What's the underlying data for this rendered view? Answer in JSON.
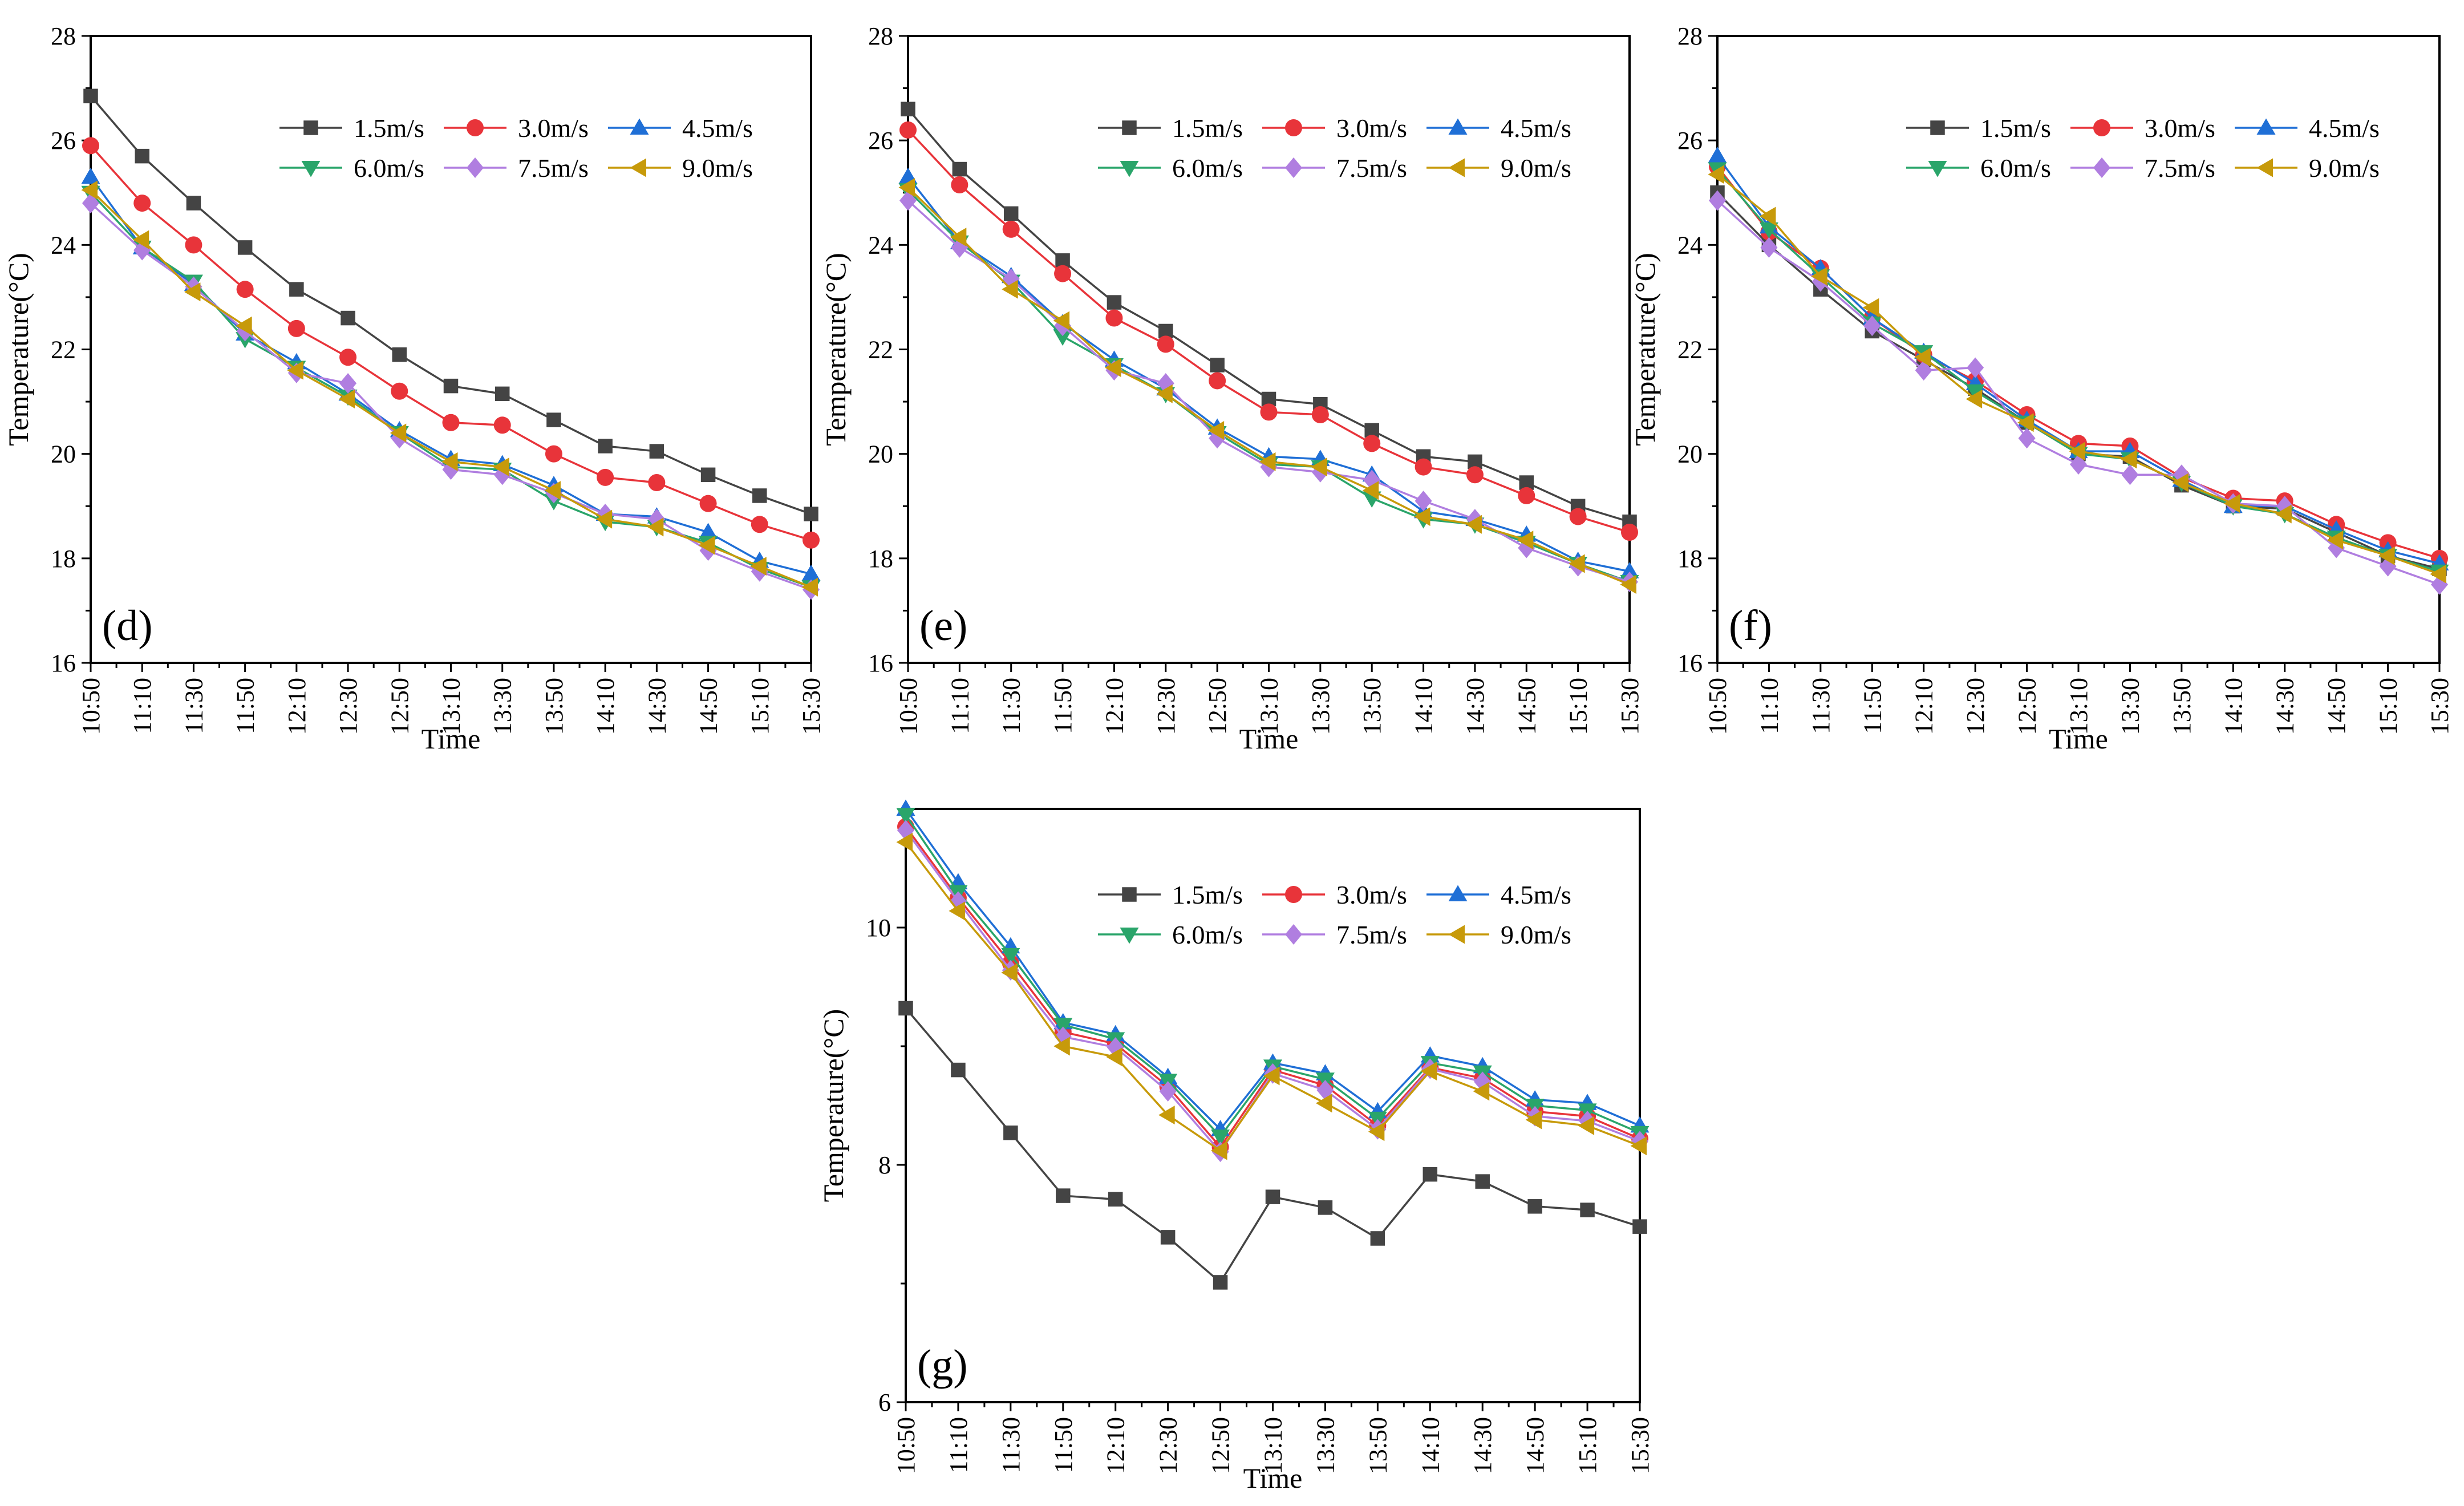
{
  "chart_data": [
    {
      "type": "line",
      "panel_label": "(d)",
      "xlabel": "Time",
      "ylabel": "Temperature(°C)",
      "ylim": [
        16,
        28
      ],
      "yticks": [
        16,
        18,
        20,
        22,
        24,
        26,
        28
      ],
      "categories": [
        "10:50",
        "11:10",
        "11:30",
        "11:50",
        "12:10",
        "12:30",
        "12:50",
        "13:10",
        "13:30",
        "13:50",
        "14:10",
        "14:30",
        "14:50",
        "15:10",
        "15:30"
      ],
      "legend_position": "top-right",
      "series": [
        {
          "name": "1.5m/s",
          "color": "#444444",
          "marker": "square",
          "values": [
            26.85,
            25.7,
            24.8,
            23.95,
            23.15,
            22.6,
            21.9,
            21.3,
            21.15,
            20.65,
            20.15,
            20.05,
            19.6,
            19.2,
            18.85
          ]
        },
        {
          "name": "3.0m/s",
          "color": "#e8343a",
          "marker": "circle",
          "values": [
            25.9,
            24.8,
            24.0,
            23.15,
            22.4,
            21.85,
            21.2,
            20.6,
            20.55,
            20.0,
            19.55,
            19.45,
            19.05,
            18.65,
            18.35
          ]
        },
        {
          "name": "4.5m/s",
          "color": "#1f6fd6",
          "marker": "triangle-up",
          "values": [
            25.3,
            23.95,
            23.25,
            22.3,
            21.75,
            21.15,
            20.45,
            19.9,
            19.8,
            19.4,
            18.85,
            18.8,
            18.5,
            17.95,
            17.7
          ]
        },
        {
          "name": "6.0m/s",
          "color": "#2aa56a",
          "marker": "triangle-down",
          "values": [
            25.0,
            23.95,
            23.3,
            22.2,
            21.65,
            21.1,
            20.4,
            19.75,
            19.7,
            19.1,
            18.7,
            18.6,
            18.3,
            17.8,
            17.45
          ]
        },
        {
          "name": "7.5m/s",
          "color": "#b07ee0",
          "marker": "diamond",
          "values": [
            24.8,
            23.9,
            23.2,
            22.35,
            21.55,
            21.35,
            20.3,
            19.7,
            19.6,
            19.25,
            18.85,
            18.75,
            18.15,
            17.75,
            17.4
          ]
        },
        {
          "name": "9.0m/s",
          "color": "#c79a0a",
          "marker": "triangle-left",
          "values": [
            25.05,
            24.1,
            23.1,
            22.45,
            21.6,
            21.05,
            20.4,
            19.85,
            19.75,
            19.3,
            18.75,
            18.6,
            18.25,
            17.85,
            17.45
          ]
        }
      ]
    },
    {
      "type": "line",
      "panel_label": "(e)",
      "xlabel": "Time",
      "ylabel": "Temperature(°C)",
      "ylim": [
        16,
        28
      ],
      "yticks": [
        16,
        18,
        20,
        22,
        24,
        26,
        28
      ],
      "categories": [
        "10:50",
        "11:10",
        "11:30",
        "11:50",
        "12:10",
        "12:30",
        "12:50",
        "13:10",
        "13:30",
        "13:50",
        "14:10",
        "14:30",
        "14:50",
        "15:10",
        "15:30"
      ],
      "legend_position": "top-right",
      "series": [
        {
          "name": "1.5m/s",
          "color": "#444444",
          "marker": "square",
          "values": [
            26.6,
            25.45,
            24.6,
            23.7,
            22.9,
            22.35,
            21.7,
            21.05,
            20.95,
            20.45,
            19.95,
            19.85,
            19.45,
            19.0,
            18.7
          ]
        },
        {
          "name": "3.0m/s",
          "color": "#e8343a",
          "marker": "circle",
          "values": [
            26.2,
            25.15,
            24.3,
            23.45,
            22.6,
            22.1,
            21.4,
            20.8,
            20.75,
            20.2,
            19.75,
            19.6,
            19.2,
            18.8,
            18.5
          ]
        },
        {
          "name": "4.5m/s",
          "color": "#1f6fd6",
          "marker": "triangle-up",
          "values": [
            25.3,
            24.05,
            23.4,
            22.5,
            21.8,
            21.25,
            20.5,
            19.95,
            19.9,
            19.6,
            18.9,
            18.75,
            18.45,
            17.95,
            17.75
          ]
        },
        {
          "name": "6.0m/s",
          "color": "#2aa56a",
          "marker": "triangle-down",
          "values": [
            25.05,
            24.05,
            23.3,
            22.25,
            21.7,
            21.15,
            20.4,
            19.8,
            19.75,
            19.15,
            18.75,
            18.65,
            18.3,
            17.9,
            17.55
          ]
        },
        {
          "name": "7.5m/s",
          "color": "#b07ee0",
          "marker": "diamond",
          "values": [
            24.85,
            23.95,
            23.35,
            22.45,
            21.6,
            21.35,
            20.3,
            19.75,
            19.65,
            19.5,
            19.1,
            18.75,
            18.2,
            17.85,
            17.55
          ]
        },
        {
          "name": "9.0m/s",
          "color": "#c79a0a",
          "marker": "triangle-left",
          "values": [
            25.1,
            24.15,
            23.15,
            22.55,
            21.65,
            21.15,
            20.45,
            19.85,
            19.75,
            19.3,
            18.8,
            18.65,
            18.35,
            17.9,
            17.5
          ]
        }
      ]
    },
    {
      "type": "line",
      "panel_label": "(f)",
      "xlabel": "Time",
      "ylabel": "Temperature(°C)",
      "ylim": [
        16,
        28
      ],
      "yticks": [
        16,
        18,
        20,
        22,
        24,
        26,
        28
      ],
      "categories": [
        "10:50",
        "11:10",
        "11:30",
        "11:50",
        "12:10",
        "12:30",
        "12:50",
        "13:10",
        "13:30",
        "13:50",
        "14:10",
        "14:30",
        "14:50",
        "15:10",
        "15:30"
      ],
      "legend_position": "top-right",
      "series": [
        {
          "name": "1.5m/s",
          "color": "#444444",
          "marker": "square",
          "values": [
            25.0,
            24.0,
            23.15,
            22.35,
            21.8,
            21.25,
            20.6,
            20.0,
            19.95,
            19.4,
            19.0,
            18.95,
            18.5,
            18.05,
            17.8
          ]
        },
        {
          "name": "3.0m/s",
          "color": "#e8343a",
          "marker": "circle",
          "values": [
            25.5,
            24.25,
            23.55,
            22.6,
            21.9,
            21.4,
            20.75,
            20.2,
            20.15,
            19.55,
            19.15,
            19.1,
            18.65,
            18.3,
            18.0
          ]
        },
        {
          "name": "4.5m/s",
          "color": "#1f6fd6",
          "marker": "triangle-up",
          "values": [
            25.7,
            24.35,
            23.55,
            22.6,
            21.95,
            21.35,
            20.65,
            20.05,
            20.05,
            19.5,
            19.0,
            19.0,
            18.55,
            18.15,
            17.9
          ]
        },
        {
          "name": "6.0m/s",
          "color": "#2aa56a",
          "marker": "triangle-down",
          "values": [
            25.45,
            24.3,
            23.4,
            22.5,
            21.95,
            21.2,
            20.6,
            20.0,
            19.9,
            19.45,
            19.0,
            18.85,
            18.4,
            18.05,
            17.75
          ]
        },
        {
          "name": "7.5m/s",
          "color": "#b07ee0",
          "marker": "diamond",
          "values": [
            24.85,
            23.95,
            23.3,
            22.45,
            21.6,
            21.65,
            20.3,
            19.8,
            19.6,
            19.6,
            19.05,
            19.0,
            18.2,
            17.85,
            17.5
          ]
        },
        {
          "name": "9.0m/s",
          "color": "#c79a0a",
          "marker": "triangle-left",
          "values": [
            25.35,
            24.55,
            23.4,
            22.8,
            21.85,
            21.05,
            20.6,
            20.05,
            19.9,
            19.45,
            19.05,
            18.85,
            18.35,
            18.05,
            17.7
          ]
        }
      ]
    },
    {
      "type": "line",
      "panel_label": "(g)",
      "xlabel": "Time",
      "ylabel": "Temperature(°C)",
      "ylim": [
        6,
        11
      ],
      "yticks": [
        6,
        8,
        10
      ],
      "categories": [
        "10:50",
        "11:10",
        "11:30",
        "11:50",
        "12:10",
        "12:30",
        "12:50",
        "13:10",
        "13:30",
        "13:50",
        "14:10",
        "14:30",
        "14:50",
        "15:10",
        "15:30"
      ],
      "legend_position": "top-right",
      "series": [
        {
          "name": "1.5m/s",
          "color": "#444444",
          "marker": "square",
          "values": [
            9.32,
            8.8,
            8.27,
            7.74,
            7.71,
            7.39,
            7.01,
            7.73,
            7.64,
            7.38,
            7.92,
            7.86,
            7.65,
            7.62,
            7.48
          ]
        },
        {
          "name": "3.0m/s",
          "color": "#e8343a",
          "marker": "circle",
          "values": [
            10.85,
            10.25,
            9.7,
            9.12,
            9.02,
            8.66,
            8.15,
            8.8,
            8.67,
            8.33,
            8.82,
            8.73,
            8.45,
            8.41,
            8.22
          ]
        },
        {
          "name": "4.5m/s",
          "color": "#1f6fd6",
          "marker": "triangle-up",
          "values": [
            11.0,
            10.38,
            9.84,
            9.2,
            9.1,
            8.74,
            8.3,
            8.86,
            8.77,
            8.45,
            8.92,
            8.83,
            8.55,
            8.52,
            8.33
          ]
        },
        {
          "name": "6.0m/s",
          "color": "#2aa56a",
          "marker": "triangle-down",
          "values": [
            10.95,
            10.3,
            9.77,
            9.18,
            9.06,
            8.71,
            8.24,
            8.83,
            8.72,
            8.39,
            8.86,
            8.78,
            8.5,
            8.46,
            8.27
          ]
        },
        {
          "name": "7.5m/s",
          "color": "#b07ee0",
          "marker": "diamond",
          "values": [
            10.82,
            10.22,
            9.64,
            9.08,
            8.99,
            8.62,
            8.11,
            8.77,
            8.63,
            8.3,
            8.81,
            8.7,
            8.41,
            8.37,
            8.2
          ]
        },
        {
          "name": "9.0m/s",
          "color": "#c79a0a",
          "marker": "triangle-left",
          "values": [
            10.72,
            10.14,
            9.62,
            9.0,
            8.91,
            8.42,
            8.12,
            8.75,
            8.52,
            8.28,
            8.79,
            8.62,
            8.38,
            8.33,
            8.16
          ]
        }
      ]
    }
  ]
}
